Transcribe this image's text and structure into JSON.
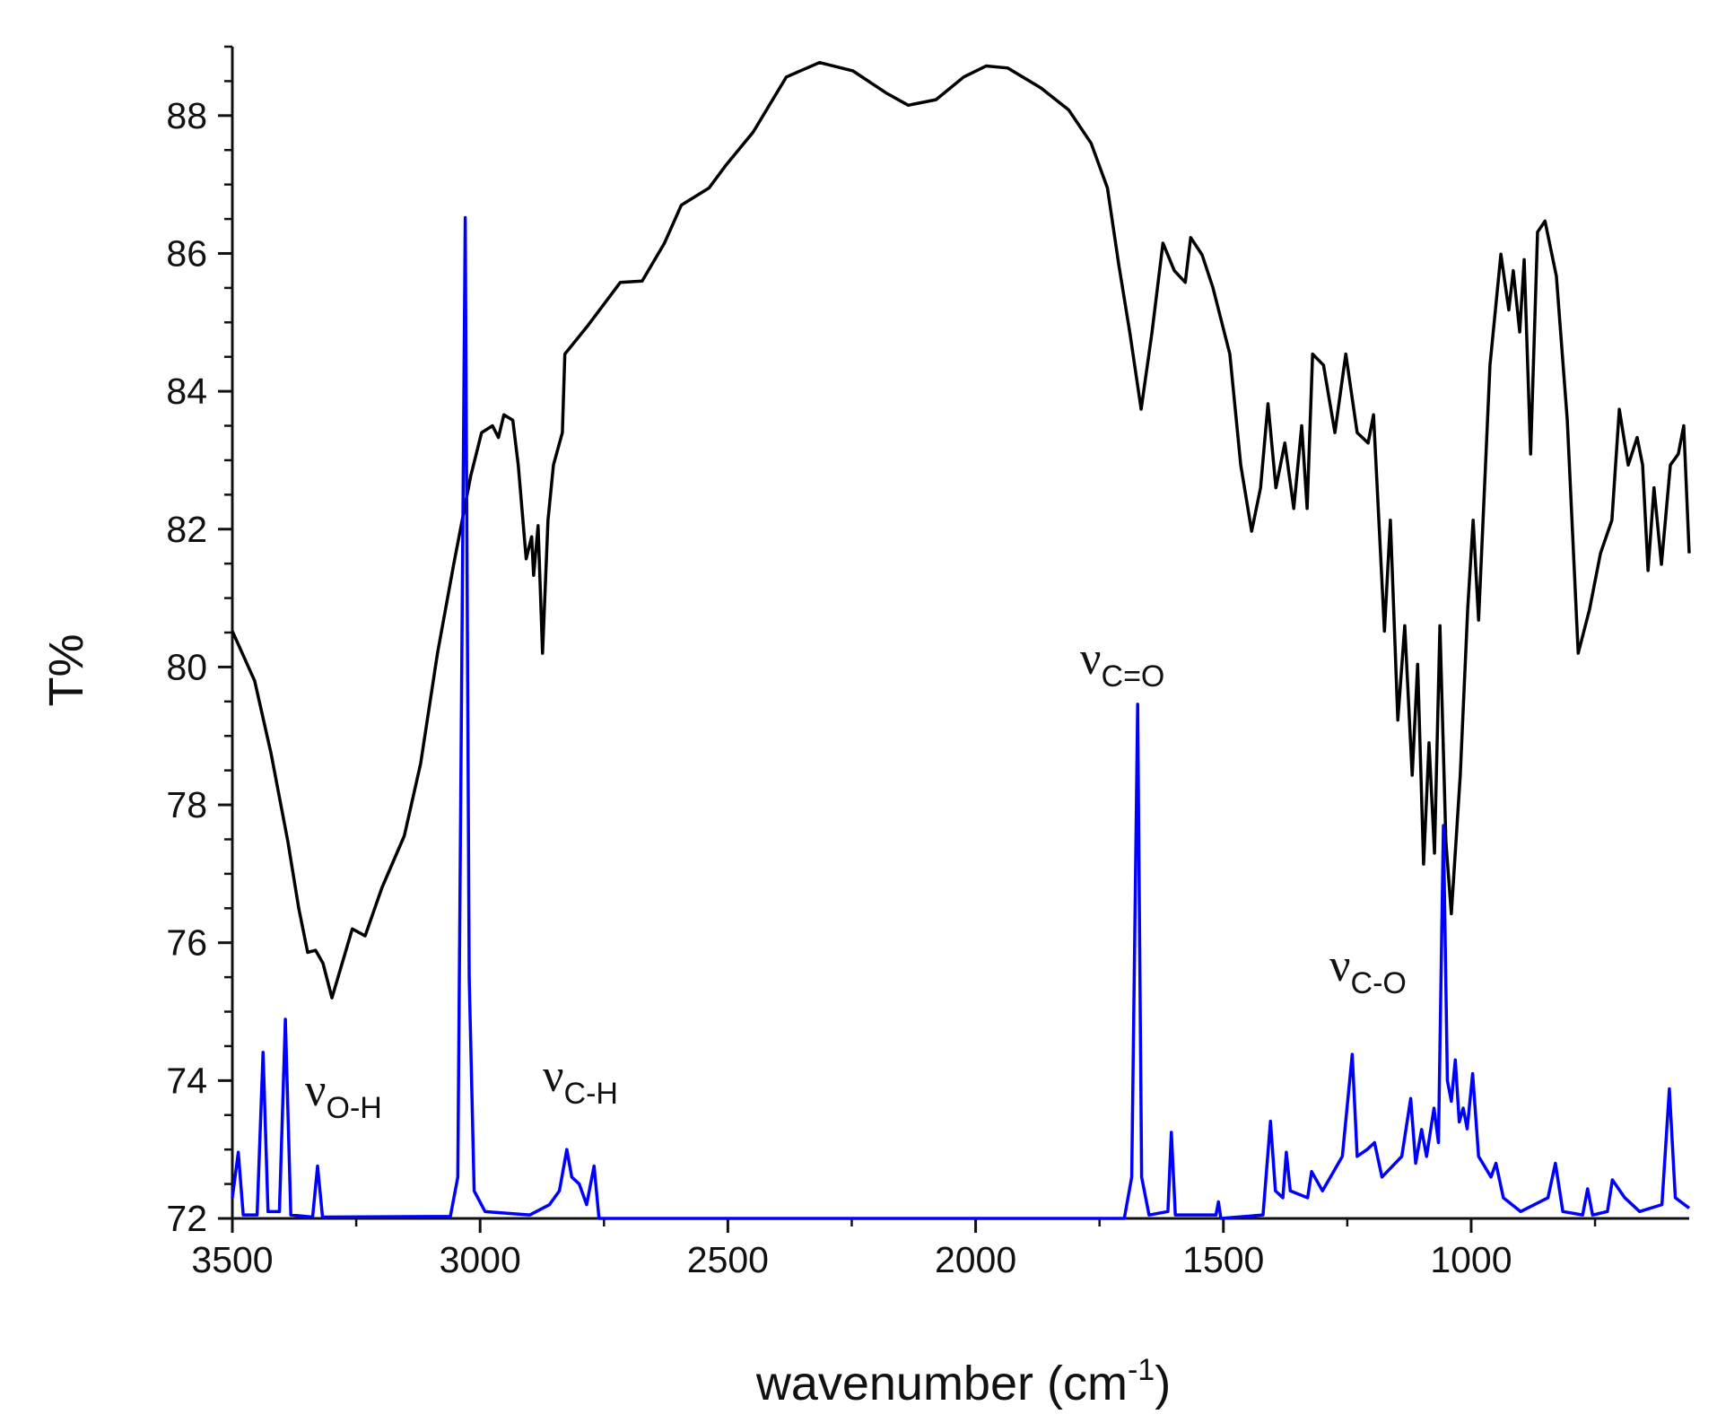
{
  "chart_data": {
    "type": "line",
    "xlabel": {
      "text": "wavenumber (cm",
      "sup": "-1",
      "after": ")"
    },
    "ylabel": "T%",
    "xlim": [
      3500,
      560
    ],
    "ylim": [
      72,
      89
    ],
    "xticks": [
      3500,
      3000,
      2500,
      2000,
      1500,
      1000
    ],
    "xminorticks": [
      3250,
      2750,
      2250,
      1750,
      1250,
      750
    ],
    "yticks": [
      72,
      74,
      76,
      78,
      80,
      82,
      84,
      86,
      88
    ],
    "yminorticks": [
      72.5,
      73,
      73.5,
      74.5,
      75,
      75.5,
      76.5,
      77,
      77.5,
      78.5,
      79,
      79.5,
      80.5,
      81,
      81.5,
      82.5,
      83,
      83.5,
      84.5,
      85,
      85.5,
      86.5,
      87,
      87.5,
      88.5,
      89
    ],
    "annotations": [
      {
        "text": "ν",
        "sub": "O-H"
      },
      {
        "text": "ν",
        "sub": "C-H"
      },
      {
        "text": "ν",
        "sub": "C=O"
      },
      {
        "text": "ν",
        "sub": "C-O"
      }
    ],
    "series": [
      {
        "color": "#000000",
        "x": [
          3500,
          3455,
          3422,
          3388,
          3366,
          3348,
          3332,
          3317,
          3299,
          3285,
          3258,
          3232,
          3198,
          3153,
          3120,
          3086,
          3053,
          3019,
          2997,
          2975,
          2963,
          2952,
          2934,
          2923,
          2907,
          2896,
          2892,
          2883,
          2874,
          2863,
          2852,
          2834,
          2829,
          2784,
          2717,
          2673,
          2628,
          2594,
          2538,
          2505,
          2449,
          2382,
          2315,
          2248,
          2181,
          2136,
          2080,
          2024,
          1979,
          1935,
          1868,
          1812,
          1767,
          1734,
          1711,
          1689,
          1666,
          1644,
          1622,
          1599,
          1577,
          1566,
          1543,
          1521,
          1487,
          1465,
          1443,
          1425,
          1410,
          1394,
          1376,
          1358,
          1342,
          1331,
          1320,
          1298,
          1275,
          1253,
          1230,
          1208,
          1197,
          1175,
          1163,
          1148,
          1134,
          1119,
          1108,
          1096,
          1085,
          1074,
          1063,
          1051,
          1040,
          1022,
          1007,
          996,
          985,
          962,
          940,
          924,
          915,
          902,
          893,
          880,
          866,
          851,
          828,
          806,
          784,
          761,
          739,
          716,
          701,
          683,
          665,
          654,
          643,
          631,
          616,
          598,
          582,
          571,
          560
        ],
        "values": [
          80.52,
          79.8,
          78.75,
          77.47,
          76.5,
          75.86,
          75.89,
          75.7,
          75.2,
          75.54,
          76.2,
          76.1,
          76.8,
          77.55,
          78.6,
          80.2,
          81.5,
          82.77,
          83.4,
          83.5,
          83.33,
          83.66,
          83.58,
          82.93,
          81.57,
          81.89,
          81.33,
          82.05,
          80.2,
          82.13,
          82.93,
          83.4,
          84.54,
          84.94,
          85.58,
          85.6,
          86.15,
          86.7,
          86.95,
          87.27,
          87.76,
          88.56,
          88.77,
          88.65,
          88.33,
          88.15,
          88.23,
          88.56,
          88.72,
          88.69,
          88.4,
          88.08,
          87.6,
          86.95,
          85.83,
          84.86,
          83.74,
          84.86,
          86.15,
          85.75,
          85.58,
          86.23,
          85.98,
          85.5,
          84.54,
          82.93,
          81.97,
          82.6,
          83.82,
          82.6,
          83.25,
          82.3,
          83.5,
          82.3,
          84.54,
          84.38,
          83.4,
          84.54,
          83.4,
          83.25,
          83.66,
          80.52,
          82.13,
          79.23,
          80.6,
          78.43,
          80.04,
          77.14,
          78.9,
          77.3,
          80.6,
          77.47,
          76.42,
          78.43,
          80.84,
          82.13,
          80.68,
          84.38,
          85.99,
          85.18,
          85.75,
          84.86,
          85.91,
          83.09,
          86.31,
          86.47,
          85.67,
          83.58,
          80.2,
          80.84,
          81.65,
          82.13,
          83.74,
          82.93,
          83.33,
          82.93,
          81.4,
          82.6,
          81.49,
          82.93,
          83.09,
          83.5,
          81.65
        ]
      },
      {
        "color": "#0000ff",
        "x": [
          3500,
          3488,
          3478,
          3450,
          3438,
          3428,
          3405,
          3393,
          3382,
          3338,
          3328,
          3318,
          3060,
          3045,
          3030,
          3022,
          3012,
          2990,
          2900,
          2860,
          2840,
          2825,
          2815,
          2800,
          2785,
          2770,
          2760,
          1700,
          1685,
          1673,
          1665,
          1650,
          1612,
          1605,
          1597,
          1515,
          1510,
          1505,
          1420,
          1405,
          1395,
          1380,
          1373,
          1365,
          1330,
          1322,
          1300,
          1260,
          1240,
          1230,
          1210,
          1195,
          1180,
          1140,
          1122,
          1112,
          1100,
          1090,
          1075,
          1066,
          1056,
          1048,
          1040,
          1032,
          1024,
          1016,
          1008,
          997,
          985,
          960,
          950,
          935,
          900,
          845,
          830,
          815,
          775,
          765,
          755,
          725,
          715,
          690,
          660,
          615,
          600,
          588,
          560
        ],
        "values": [
          72.3,
          72.96,
          72.05,
          72.05,
          74.41,
          72.1,
          72.1,
          74.89,
          72.05,
          72.02,
          72.76,
          72.02,
          72.03,
          72.6,
          86.52,
          75.5,
          72.4,
          72.1,
          72.05,
          72.2,
          72.4,
          73.0,
          72.6,
          72.5,
          72.2,
          72.76,
          72.0,
          72.0,
          72.6,
          79.46,
          72.6,
          72.05,
          72.1,
          73.25,
          72.05,
          72.05,
          72.24,
          72.0,
          72.05,
          73.41,
          72.4,
          72.3,
          72.96,
          72.4,
          72.3,
          72.68,
          72.4,
          72.9,
          74.38,
          72.9,
          73.0,
          73.1,
          72.6,
          72.9,
          73.74,
          72.8,
          73.29,
          72.9,
          73.6,
          73.1,
          77.7,
          74.0,
          73.7,
          74.3,
          73.4,
          73.6,
          73.3,
          74.1,
          72.9,
          72.6,
          72.8,
          72.3,
          72.1,
          72.3,
          72.8,
          72.1,
          72.05,
          72.43,
          72.05,
          72.1,
          72.56,
          72.3,
          72.1,
          72.2,
          73.88,
          72.3,
          72.15
        ]
      }
    ]
  }
}
